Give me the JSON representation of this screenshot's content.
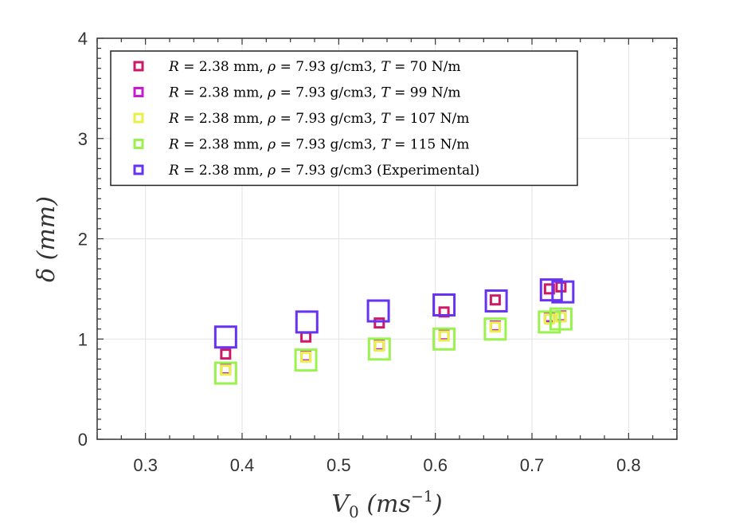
{
  "chart_data": {
    "type": "scatter",
    "xlabel": "V_0 (ms^-1)",
    "ylabel": "δ (mm)",
    "xlim": [
      0.25,
      0.85
    ],
    "ylim": [
      0,
      4
    ],
    "x_ticks": [
      "0.3",
      "0.4",
      "0.5",
      "0.6",
      "0.7",
      "0.8"
    ],
    "y_ticks": [
      "0",
      "1",
      "2",
      "3",
      "4"
    ],
    "grid": true,
    "legend_position": "top-left",
    "series": [
      {
        "name": "R = 2.38 mm, ρ = 7.93 g/cm3, T = 70 N/m",
        "color": "#cc1a66",
        "marker_size": "small",
        "points": [
          [
            0.383,
            0.85
          ],
          [
            0.466,
            1.02
          ],
          [
            0.542,
            1.16
          ],
          [
            0.609,
            1.27
          ],
          [
            0.662,
            1.39
          ],
          [
            0.718,
            1.5
          ],
          [
            0.73,
            1.52
          ]
        ]
      },
      {
        "name": "R = 2.38 mm, ρ = 7.93 g/cm3, T = 99 N/m",
        "color": "#c71ad1",
        "marker_size": "small",
        "points": [
          [
            0.383,
            0.7
          ],
          [
            0.466,
            0.83
          ],
          [
            0.542,
            0.94
          ],
          [
            0.609,
            1.04
          ],
          [
            0.662,
            1.13
          ],
          [
            0.718,
            1.22
          ],
          [
            0.73,
            1.23
          ]
        ]
      },
      {
        "name": "R = 2.38 mm, ρ = 7.93 g/cm3, T = 107 N/m",
        "color": "#e8f246",
        "marker_size": "small",
        "points": [
          [
            0.383,
            0.69
          ],
          [
            0.466,
            0.82
          ],
          [
            0.542,
            0.93
          ],
          [
            0.609,
            1.03
          ],
          [
            0.662,
            1.12
          ],
          [
            0.718,
            1.2
          ],
          [
            0.73,
            1.22
          ]
        ]
      },
      {
        "name": "R = 2.38 mm, ρ = 7.93 g/cm3, T = 115 N/m",
        "color": "#99f24d",
        "marker_size": "large",
        "points": [
          [
            0.383,
            0.66
          ],
          [
            0.466,
            0.79
          ],
          [
            0.542,
            0.9
          ],
          [
            0.609,
            1.0
          ],
          [
            0.662,
            1.1
          ],
          [
            0.718,
            1.17
          ],
          [
            0.73,
            1.2
          ]
        ]
      },
      {
        "name": "R = 2.38 mm, ρ = 7.93 g/cm3 (Experimental)",
        "color": "#6633f2",
        "marker_size": "large",
        "points": [
          [
            0.383,
            1.02
          ],
          [
            0.467,
            1.17
          ],
          [
            0.541,
            1.28
          ],
          [
            0.609,
            1.34
          ],
          [
            0.663,
            1.38
          ],
          [
            0.72,
            1.49
          ],
          [
            0.732,
            1.47
          ]
        ]
      }
    ]
  }
}
